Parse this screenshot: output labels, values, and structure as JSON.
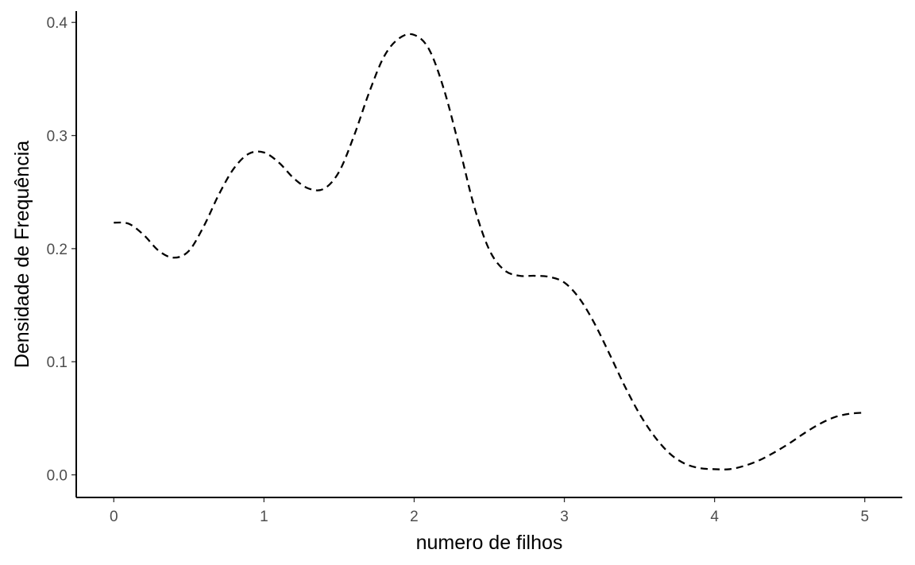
{
  "chart_data": {
    "type": "line",
    "title": "",
    "xlabel": "numero de filhos",
    "ylabel": "Densidade de Frequência",
    "xlim": [
      -0.25,
      5.25
    ],
    "ylim": [
      -0.02,
      0.41
    ],
    "x_ticks": [
      0,
      1,
      2,
      3,
      4,
      5
    ],
    "x_tick_labels": [
      "0",
      "1",
      "2",
      "3",
      "4",
      "5"
    ],
    "y_ticks": [
      0.0,
      0.1,
      0.2,
      0.3,
      0.4
    ],
    "y_tick_labels": [
      "0.0",
      "0.1",
      "0.2",
      "0.3",
      "0.4"
    ],
    "grid": false,
    "line_style": "dashed",
    "line_color": "#000000",
    "series": [
      {
        "x": [
          0.0,
          0.1,
          0.2,
          0.3,
          0.4,
          0.5,
          0.6,
          0.7,
          0.8,
          0.9,
          1.0,
          1.1,
          1.2,
          1.3,
          1.4,
          1.5,
          1.6,
          1.7,
          1.8,
          1.9,
          2.0,
          2.1,
          2.2,
          2.3,
          2.4,
          2.5,
          2.6,
          2.7,
          2.8,
          2.9,
          3.0,
          3.1,
          3.2,
          3.3,
          3.4,
          3.5,
          3.6,
          3.7,
          3.8,
          3.9,
          4.0,
          4.1,
          4.2,
          4.3,
          4.4,
          4.5,
          4.6,
          4.7,
          4.8,
          4.9,
          5.0
        ],
        "y": [
          0.223,
          0.222,
          0.212,
          0.198,
          0.192,
          0.198,
          0.22,
          0.248,
          0.271,
          0.284,
          0.285,
          0.276,
          0.262,
          0.253,
          0.253,
          0.268,
          0.3,
          0.338,
          0.37,
          0.386,
          0.389,
          0.376,
          0.34,
          0.29,
          0.237,
          0.199,
          0.181,
          0.176,
          0.176,
          0.175,
          0.17,
          0.156,
          0.134,
          0.107,
          0.079,
          0.054,
          0.034,
          0.019,
          0.01,
          0.006,
          0.005,
          0.005,
          0.008,
          0.013,
          0.02,
          0.028,
          0.037,
          0.045,
          0.051,
          0.054,
          0.055
        ]
      }
    ]
  }
}
